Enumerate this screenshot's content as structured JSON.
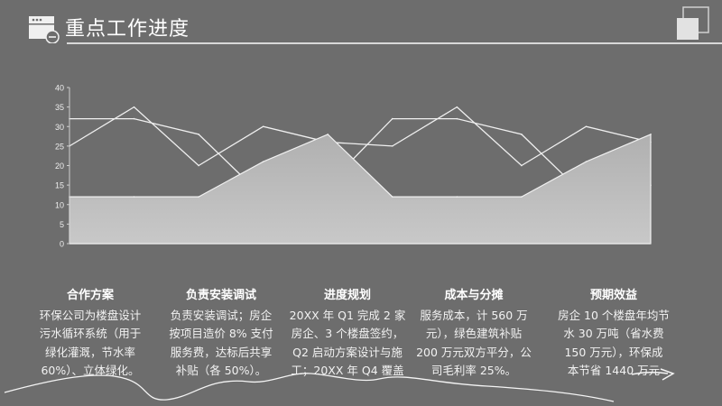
{
  "header": {
    "title": "重点工作进度",
    "icon": "browser-window-minus-icon"
  },
  "chart_data": {
    "type": "line",
    "x": [
      1,
      2,
      3,
      4,
      5,
      6,
      7,
      8,
      9,
      10
    ],
    "ylim": [
      0,
      40
    ],
    "yticks": [
      "0",
      "5",
      "10",
      "15",
      "20",
      "25",
      "30",
      "35",
      "40"
    ],
    "grid": false,
    "series": [
      {
        "values": [
          32,
          32,
          28,
          12,
          15,
          32,
          32,
          28,
          12,
          15
        ],
        "style": "line"
      },
      {
        "values": [
          25,
          35,
          20,
          30,
          26,
          25,
          35,
          20,
          30,
          26
        ],
        "style": "line"
      },
      {
        "values": [
          12,
          12,
          12,
          21,
          28,
          12,
          12,
          12,
          21,
          28
        ],
        "style": "area"
      }
    ],
    "colors": {
      "line": "#f0f0f0",
      "area": "#a8a8a8",
      "background": "#6d6d6d"
    }
  },
  "columns": [
    {
      "title": "合作方案",
      "lines": [
        "环保公司为楼盘设计",
        "污水循环系统（用于",
        "绿化灌溉，节水率",
        "60%）、立体绿化。"
      ]
    },
    {
      "title": "负责安装调试",
      "lines": [
        "负责安装调试；房企",
        "按项目造价 8% 支付",
        "服务费，达标后共享",
        "补贴（各 50%）。"
      ]
    },
    {
      "title": "进度规划",
      "lines": [
        "20XX 年 Q1 完成 2 家",
        "房企、3 个楼盘签约，",
        "Q2 启动方案设计与施",
        "工；20XX 年 Q4 覆盖"
      ]
    },
    {
      "title": "成本与分摊",
      "lines": [
        "服务成本，计 560 万",
        "元），绿色建筑补贴",
        "200 万元双方平分，公",
        "司毛利率 25%。"
      ]
    },
    {
      "title": "预期效益",
      "lines": [
        "房企 10 个楼盘年均节",
        "水 30 万吨（省水费",
        "150 万元），环保成",
        "本节省 1440 万元"
      ]
    }
  ]
}
